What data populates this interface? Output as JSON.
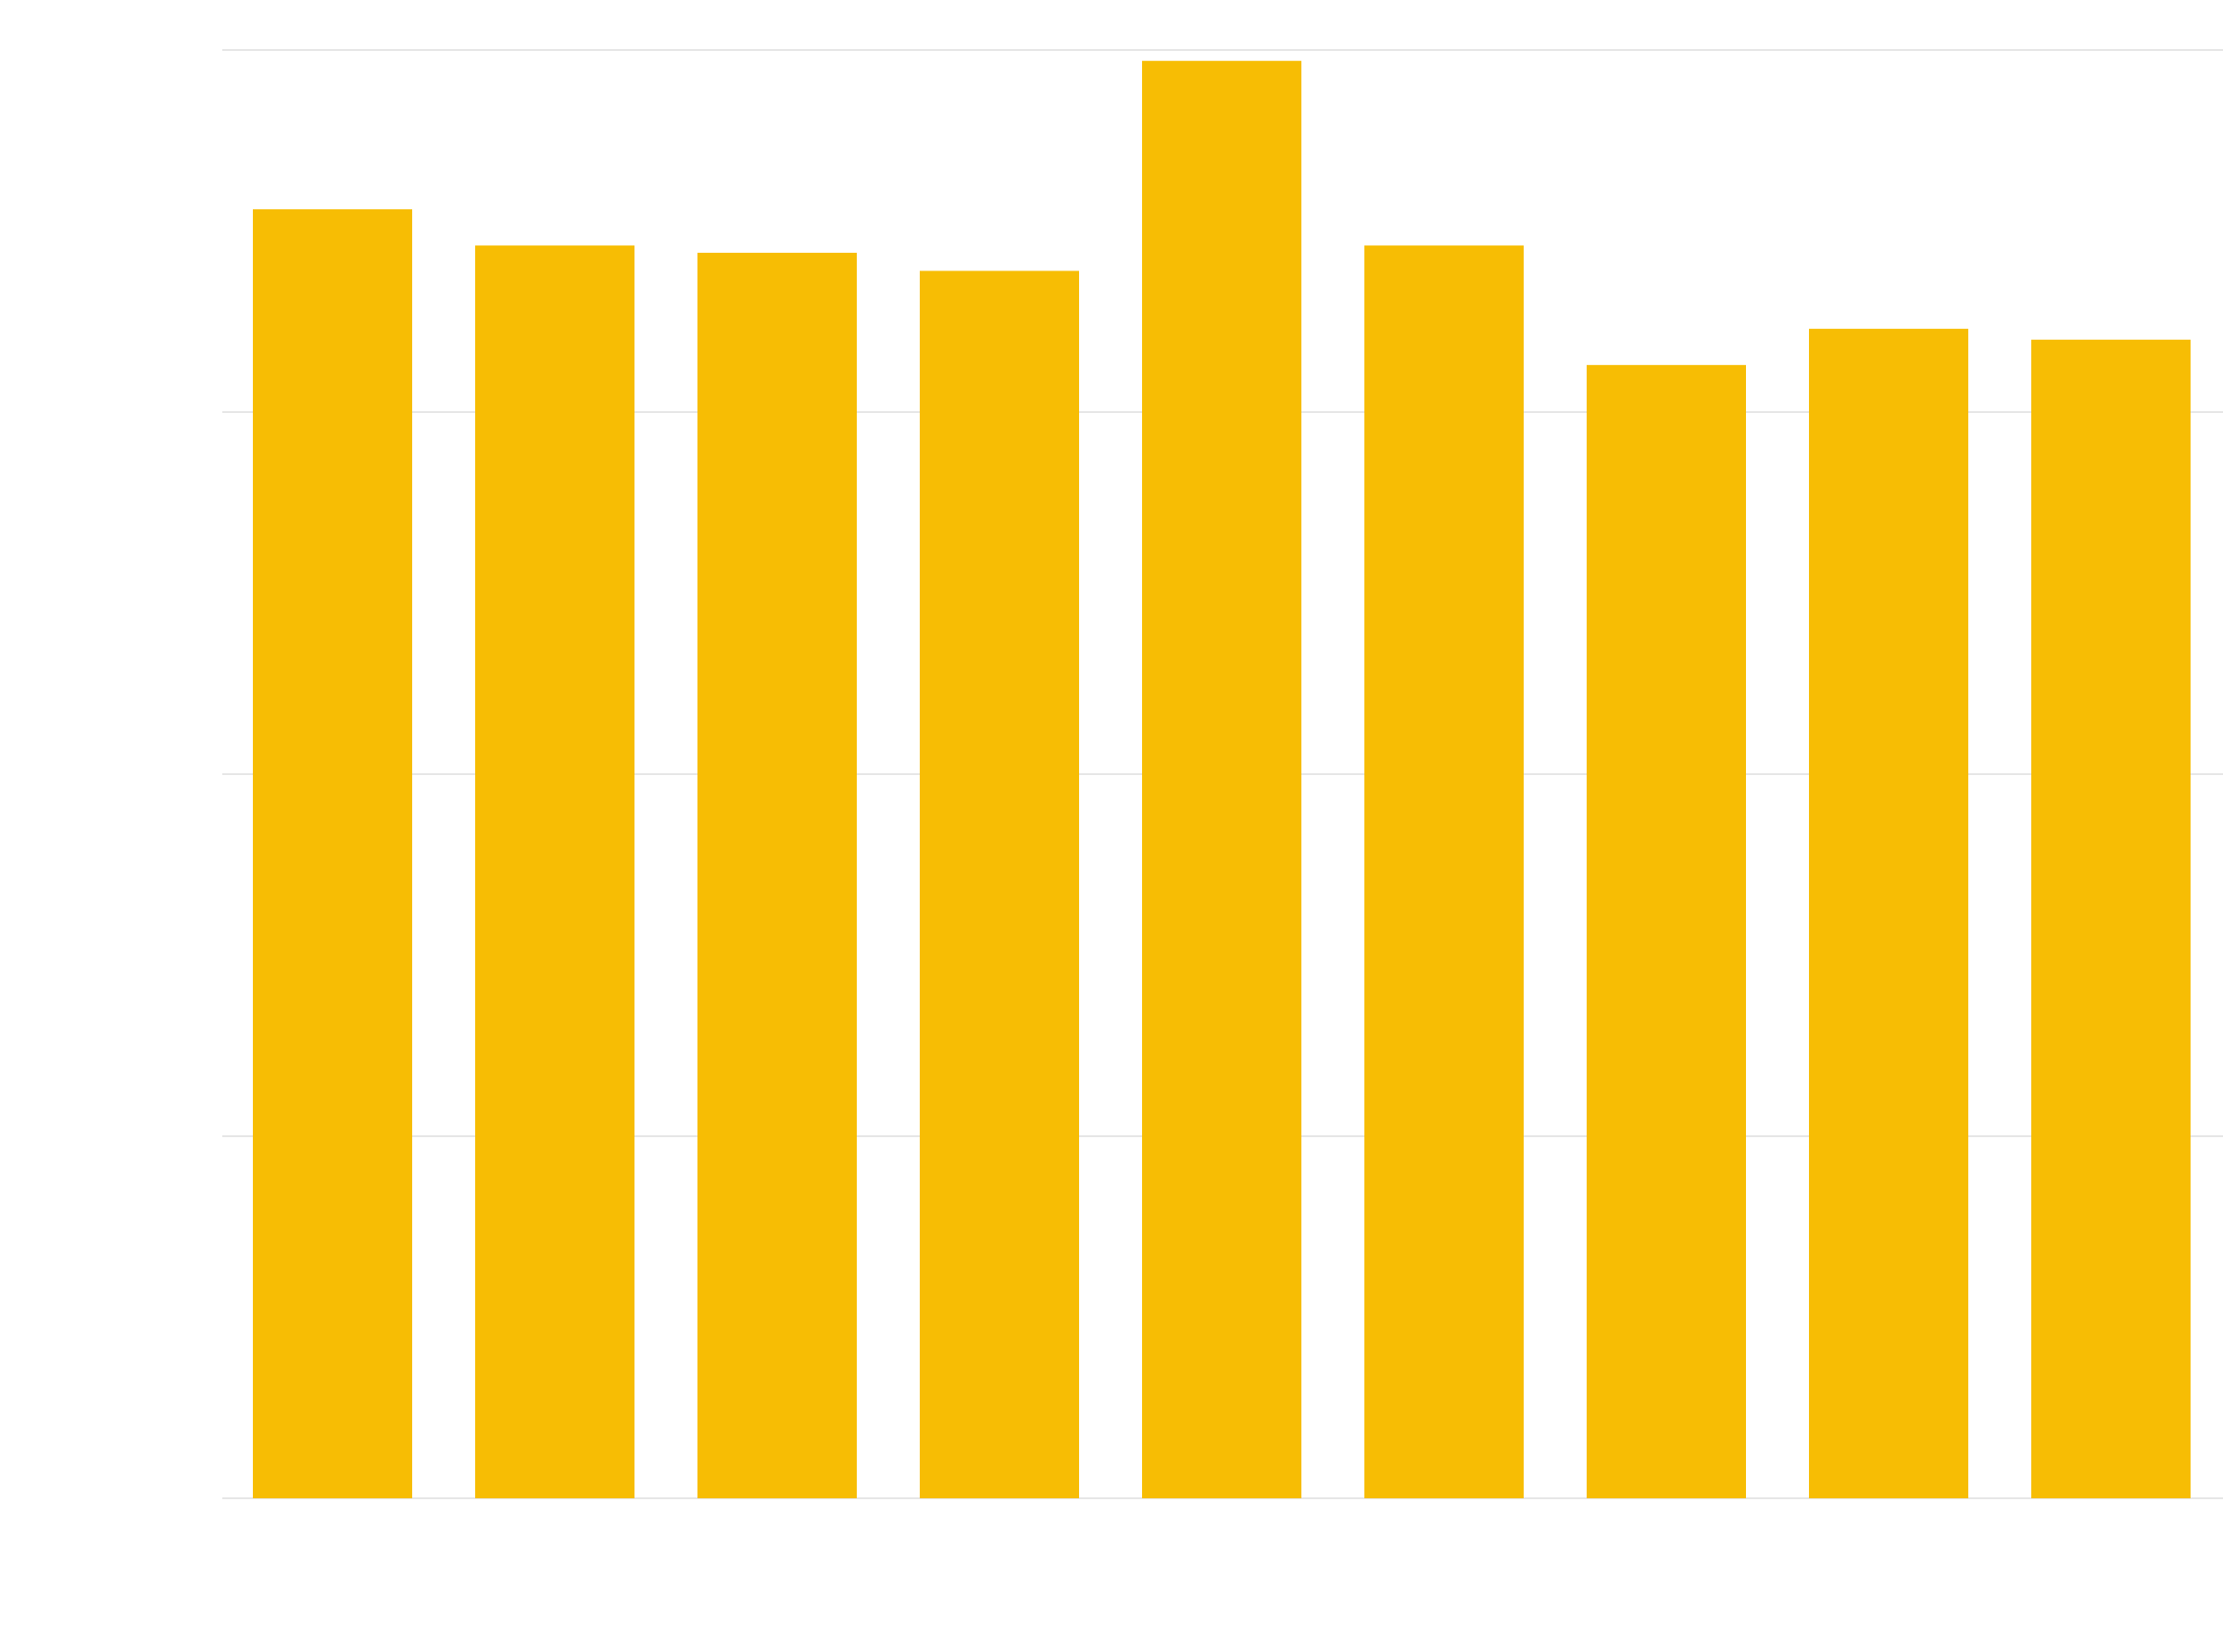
{
  "chart_data": {
    "type": "bar",
    "categories": [
      "",
      "",
      "",
      "",
      "",
      "",
      "",
      "",
      ""
    ],
    "values": [
      3.56,
      3.46,
      3.44,
      3.39,
      3.97,
      3.46,
      3.13,
      3.23,
      3.2
    ],
    "ylim": [
      0,
      4
    ],
    "yticks": [
      0,
      1,
      2,
      3,
      4
    ],
    "grid": true,
    "legend": "none",
    "title": "",
    "xlabel": "",
    "ylabel": "",
    "bar_color": "#F7BD04",
    "grid_color": "#E6E6E6"
  }
}
